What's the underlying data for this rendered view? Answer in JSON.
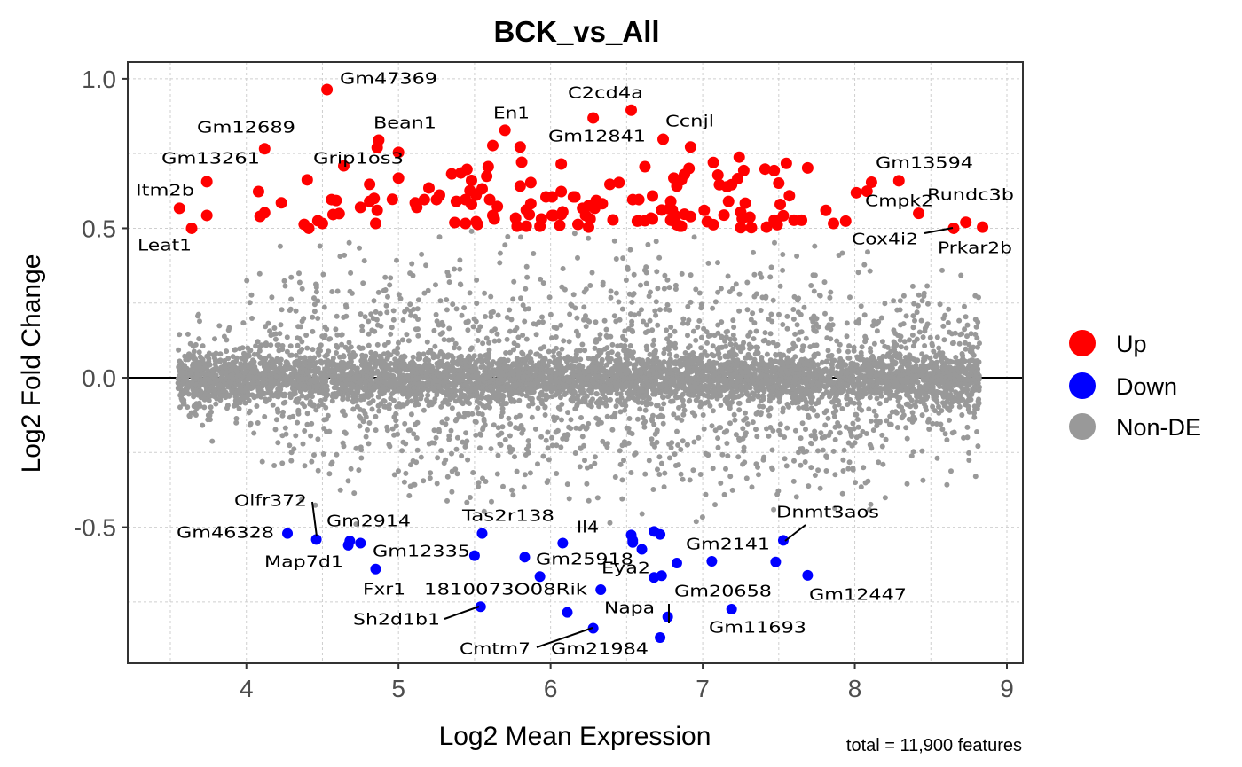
{
  "chart_data": {
    "type": "scatter",
    "title": "BCK_vs_All",
    "xlabel": "Log2 Mean Expression",
    "ylabel": "Log2 Fold Change",
    "caption": "total = 11,900 features",
    "xlim": [
      3.22,
      9.105
    ],
    "ylim": [
      -0.955,
      1.056
    ],
    "x_ticks": [
      4,
      5,
      6,
      7,
      8,
      9
    ],
    "x_tick_labels": [
      "4",
      "5",
      "6",
      "7",
      "8",
      "9"
    ],
    "y_ticks": [
      -0.5,
      0,
      0.5,
      1.0
    ],
    "y_tick_labels": [
      "-0.5",
      "0.0",
      "0.5",
      "1.0"
    ],
    "grid": true,
    "reference_line_y": 0,
    "legend": {
      "placement": "right",
      "items": [
        {
          "label": "Up",
          "color": "#FF0000"
        },
        {
          "label": "Down",
          "color": "#0000FF"
        },
        {
          "label": "Non-DE",
          "color": "#999999"
        }
      ]
    },
    "colors": {
      "up": "#FF0000",
      "down": "#0000FF",
      "non_de": "#999999"
    },
    "non_de": {
      "rendered_count": 6500,
      "x_range": [
        3.55,
        8.82
      ],
      "y_abs_max": 0.49
    },
    "labeled_up": [
      {
        "gene": "Gm47369",
        "x": 4.53,
        "y": 0.964
      },
      {
        "gene": "Gm12689",
        "x": 4.12,
        "y": 0.766
      },
      {
        "gene": "Gm13261",
        "x": 3.74,
        "y": 0.656
      },
      {
        "gene": "Itm2b",
        "x": 3.56,
        "y": 0.567
      },
      {
        "gene": "Leat1",
        "x": 3.64,
        "y": 0.5
      },
      {
        "gene": "Bean1",
        "x": 4.87,
        "y": 0.795
      },
      {
        "gene": "Grip1os3",
        "x": 4.64,
        "y": 0.709
      },
      {
        "gene": "En1",
        "x": 5.7,
        "y": 0.828
      },
      {
        "gene": "C2cd4a",
        "x": 6.53,
        "y": 0.895
      },
      {
        "gene": "Gm12841",
        "x": 6.28,
        "y": 0.869
      },
      {
        "gene": "Ccnjl",
        "x": 6.74,
        "y": 0.798
      },
      {
        "gene": "Gm13594",
        "x": 8.29,
        "y": 0.659
      },
      {
        "gene": "Cmpk2",
        "x": 8.42,
        "y": 0.55
      },
      {
        "gene": "Rundc3b",
        "x": 8.73,
        "y": 0.52
      },
      {
        "gene": "Cox4i2",
        "x": 8.65,
        "y": 0.5
      },
      {
        "gene": "Prkar2b",
        "x": 8.84,
        "y": 0.504
      }
    ],
    "labeled_down": [
      {
        "gene": "Olfr372",
        "x": 4.46,
        "y": -0.541
      },
      {
        "gene": "Gm46328",
        "x": 4.27,
        "y": -0.521
      },
      {
        "gene": "Gm2914",
        "x": 4.68,
        "y": -0.546
      },
      {
        "gene": "Map7d1",
        "x": 4.67,
        "y": -0.56
      },
      {
        "gene": "Gm12335",
        "x": 5.5,
        "y": -0.595
      },
      {
        "gene": "Fxr1",
        "x": 4.85,
        "y": -0.64
      },
      {
        "gene": "Tas2r138",
        "x": 5.55,
        "y": -0.521
      },
      {
        "gene": "1810073O08Rik",
        "x": 5.93,
        "y": -0.665
      },
      {
        "gene": "Sh2d1b1",
        "x": 5.54,
        "y": -0.766
      },
      {
        "gene": "Cmtm7",
        "x": 6.28,
        "y": -0.838
      },
      {
        "gene": "Gm21984",
        "x": 6.11,
        "y": -0.785
      },
      {
        "gene": "Il4",
        "x": 6.08,
        "y": -0.553
      },
      {
        "gene": "Gm25918",
        "x": 5.83,
        "y": -0.6
      },
      {
        "gene": "Eya2",
        "x": 6.33,
        "y": -0.709
      },
      {
        "gene": "Napa",
        "x": 6.77,
        "y": -0.8
      },
      {
        "gene": "Gm20658",
        "x": 6.73,
        "y": -0.662
      },
      {
        "gene": "Gm2141",
        "x": 7.06,
        "y": -0.614
      },
      {
        "gene": "Gm11693",
        "x": 7.19,
        "y": -0.774
      },
      {
        "gene": "Dnmt3aos",
        "x": 7.53,
        "y": -0.544
      },
      {
        "gene": "Gm12447",
        "x": 7.69,
        "y": -0.661
      }
    ],
    "down_points": [
      [
        4.75,
        -0.553
      ],
      [
        6.53,
        -0.526
      ],
      [
        6.54,
        -0.544
      ],
      [
        6.54,
        -0.551
      ],
      [
        6.6,
        -0.574
      ],
      [
        6.68,
        -0.514
      ],
      [
        6.72,
        -0.524
      ],
      [
        6.83,
        -0.62
      ],
      [
        6.68,
        -0.668
      ],
      [
        6.72,
        -0.869
      ],
      [
        7.48,
        -0.616
      ]
    ],
    "up_points": [
      [
        3.74,
        0.543
      ],
      [
        4.08,
        0.623
      ],
      [
        4.12,
        0.552
      ],
      [
        4.09,
        0.54
      ],
      [
        4.23,
        0.585
      ],
      [
        4.4,
        0.662
      ],
      [
        4.38,
        0.513
      ],
      [
        4.41,
        0.5
      ],
      [
        4.47,
        0.525
      ],
      [
        4.5,
        0.516
      ],
      [
        4.56,
        0.596
      ],
      [
        4.59,
        0.593
      ],
      [
        4.57,
        0.546
      ],
      [
        4.61,
        0.549
      ],
      [
        4.75,
        0.57
      ],
      [
        4.81,
        0.647
      ],
      [
        4.81,
        0.59
      ],
      [
        4.84,
        0.6
      ],
      [
        4.86,
        0.56
      ],
      [
        4.85,
        0.516
      ],
      [
        4.86,
        0.77
      ],
      [
        5.0,
        0.754
      ],
      [
        5.0,
        0.668
      ],
      [
        4.96,
        0.597
      ],
      [
        5.11,
        0.585
      ],
      [
        5.17,
        0.596
      ],
      [
        5.12,
        0.57
      ],
      [
        5.2,
        0.635
      ],
      [
        5.25,
        0.596
      ],
      [
        5.27,
        0.611
      ],
      [
        5.35,
        0.682
      ],
      [
        5.41,
        0.685
      ],
      [
        5.45,
        0.697
      ],
      [
        5.48,
        0.66
      ],
      [
        5.38,
        0.59
      ],
      [
        5.44,
        0.596
      ],
      [
        5.48,
        0.58
      ],
      [
        5.47,
        0.626
      ],
      [
        5.51,
        0.611
      ],
      [
        5.55,
        0.632
      ],
      [
        5.37,
        0.519
      ],
      [
        5.44,
        0.516
      ],
      [
        5.51,
        0.522
      ],
      [
        5.52,
        0.513
      ],
      [
        5.59,
        0.706
      ],
      [
        5.58,
        0.674
      ],
      [
        5.6,
        0.596
      ],
      [
        5.65,
        0.573
      ],
      [
        5.62,
        0.543
      ],
      [
        5.63,
        0.531
      ],
      [
        5.62,
        0.777
      ],
      [
        5.8,
        0.772
      ],
      [
        5.81,
        0.721
      ],
      [
        5.8,
        0.641
      ],
      [
        5.87,
        0.653
      ],
      [
        5.87,
        0.582
      ],
      [
        5.84,
        0.561
      ],
      [
        5.86,
        0.546
      ],
      [
        5.77,
        0.534
      ],
      [
        5.84,
        0.507
      ],
      [
        5.78,
        0.507
      ],
      [
        5.93,
        0.507
      ],
      [
        5.94,
        0.531
      ],
      [
        6.07,
        0.715
      ],
      [
        5.97,
        0.605
      ],
      [
        6.01,
        0.605
      ],
      [
        6.07,
        0.623
      ],
      [
        6.01,
        0.543
      ],
      [
        6.07,
        0.546
      ],
      [
        6.06,
        0.51
      ],
      [
        6.39,
        0.647
      ],
      [
        6.45,
        0.653
      ],
      [
        6.15,
        0.605
      ],
      [
        6.16,
        0.605
      ],
      [
        6.21,
        0.567
      ],
      [
        6.25,
        0.576
      ],
      [
        6.29,
        0.567
      ],
      [
        6.3,
        0.593
      ],
      [
        6.34,
        0.582
      ],
      [
        6.23,
        0.543
      ],
      [
        6.26,
        0.531
      ],
      [
        6.18,
        0.513
      ],
      [
        6.25,
        0.504
      ],
      [
        6.41,
        0.528
      ],
      [
        6.02,
        0.543
      ],
      [
        6.08,
        0.555
      ],
      [
        6.62,
        0.706
      ],
      [
        6.81,
        0.668
      ],
      [
        6.83,
        0.641
      ],
      [
        6.54,
        0.596
      ],
      [
        6.58,
        0.596
      ],
      [
        6.67,
        0.608
      ],
      [
        6.73,
        0.561
      ],
      [
        6.79,
        0.59
      ],
      [
        6.8,
        0.561
      ],
      [
        6.58,
        0.525
      ],
      [
        6.62,
        0.525
      ],
      [
        6.67,
        0.531
      ],
      [
        6.82,
        0.522
      ],
      [
        6.85,
        0.507
      ],
      [
        6.92,
        0.772
      ],
      [
        6.91,
        0.7
      ],
      [
        6.88,
        0.68
      ],
      [
        6.86,
        0.662
      ],
      [
        6.78,
        0.565
      ],
      [
        6.82,
        0.542
      ],
      [
        6.88,
        0.547
      ],
      [
        6.92,
        0.539
      ],
      [
        6.79,
        0.527
      ],
      [
        6.86,
        0.507
      ],
      [
        6.83,
        0.512
      ],
      [
        6.57,
        0.524
      ],
      [
        6.66,
        0.534
      ],
      [
        7.01,
        0.56
      ],
      [
        7.03,
        0.522
      ],
      [
        7.07,
        0.512
      ],
      [
        7.07,
        0.72
      ],
      [
        7.1,
        0.678
      ],
      [
        7.11,
        0.646
      ],
      [
        7.24,
        0.738
      ],
      [
        7.27,
        0.693
      ],
      [
        7.23,
        0.666
      ],
      [
        7.19,
        0.646
      ],
      [
        7.16,
        0.639
      ],
      [
        7.17,
        0.59
      ],
      [
        7.14,
        0.544
      ],
      [
        7.25,
        0.554
      ],
      [
        7.28,
        0.584
      ],
      [
        7.31,
        0.537
      ],
      [
        7.26,
        0.532
      ],
      [
        7.25,
        0.502
      ],
      [
        7.32,
        0.502
      ],
      [
        7.41,
        0.698
      ],
      [
        7.47,
        0.693
      ],
      [
        7.5,
        0.651
      ],
      [
        7.55,
        0.717
      ],
      [
        7.69,
        0.702
      ],
      [
        7.57,
        0.609
      ],
      [
        7.51,
        0.58
      ],
      [
        7.53,
        0.542
      ],
      [
        7.47,
        0.527
      ],
      [
        7.6,
        0.527
      ],
      [
        7.65,
        0.527
      ],
      [
        7.42,
        0.504
      ],
      [
        7.49,
        0.512
      ],
      [
        7.81,
        0.56
      ],
      [
        7.86,
        0.516
      ],
      [
        7.94,
        0.524
      ],
      [
        8.01,
        0.619
      ],
      [
        8.08,
        0.624
      ],
      [
        8.11,
        0.654
      ]
    ]
  }
}
